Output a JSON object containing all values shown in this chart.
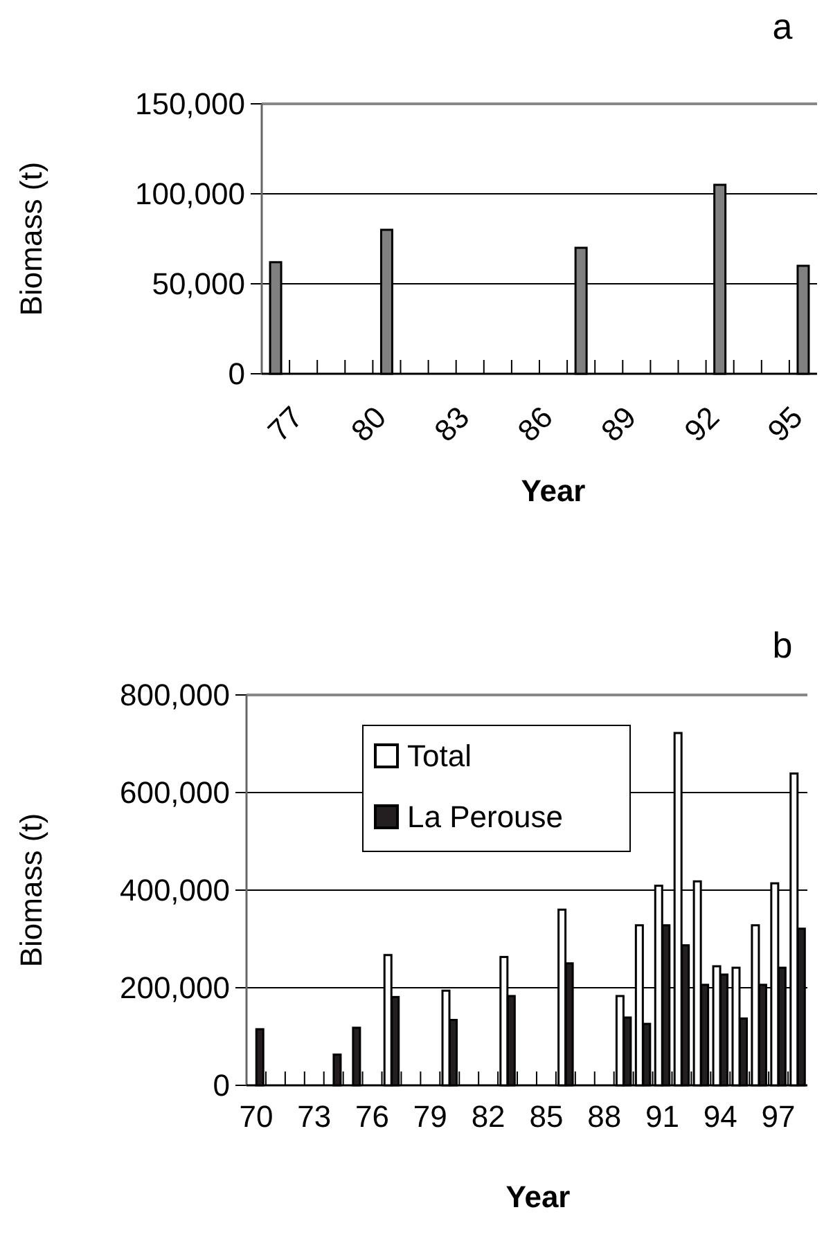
{
  "chart_data": [
    {
      "type": "bar",
      "title": "a",
      "xlabel": "Year",
      "ylabel": "Biomass (t)",
      "categories": [
        "77",
        null,
        null,
        "80",
        null,
        null,
        "83",
        null,
        null,
        "86",
        null,
        null,
        "89",
        null,
        null,
        "92",
        null,
        null,
        "95",
        null
      ],
      "series": [
        {
          "color": "#808080",
          "values": [
            62000,
            null,
            null,
            null,
            80000,
            null,
            null,
            null,
            null,
            null,
            null,
            70000,
            null,
            null,
            null,
            null,
            105000,
            null,
            null,
            60000
          ]
        }
      ],
      "ylim": [
        0,
        150000
      ],
      "yticks": [
        {
          "value": 0,
          "label": "0"
        },
        {
          "value": 50000,
          "label": "50,000"
        },
        {
          "value": 100000,
          "label": "100,000"
        },
        {
          "value": 150000,
          "label": "150,000"
        }
      ],
      "grid": "y",
      "legend": false
    },
    {
      "type": "bar",
      "title": "b",
      "xlabel": "Year",
      "ylabel": "Biomass (t)",
      "categories": [
        "70",
        null,
        null,
        "73",
        null,
        null,
        "76",
        null,
        null,
        "79",
        null,
        null,
        "82",
        null,
        null,
        "85",
        null,
        null,
        "88",
        null,
        null,
        "91",
        null,
        null,
        "94",
        null,
        null,
        "97",
        null
      ],
      "series": [
        {
          "name": "Total",
          "color": "#ffffff",
          "values": [
            null,
            null,
            null,
            null,
            null,
            null,
            null,
            267000,
            null,
            null,
            194000,
            null,
            null,
            263000,
            null,
            null,
            360000,
            null,
            null,
            183000,
            328000,
            409000,
            722000,
            418000,
            244000,
            241000,
            328000,
            414000,
            639000
          ]
        },
        {
          "name": "La Perouse",
          "color": "#231f20",
          "values": [
            115000,
            null,
            null,
            null,
            63000,
            118000,
            null,
            181000,
            null,
            null,
            134000,
            null,
            null,
            183000,
            null,
            null,
            250000,
            null,
            null,
            139000,
            126000,
            328000,
            287000,
            206000,
            227000,
            137000,
            206000,
            241000,
            321000
          ]
        }
      ],
      "ylim": [
        0,
        800000
      ],
      "yticks": [
        {
          "value": 0,
          "label": "0"
        },
        {
          "value": 200000,
          "label": "200,000"
        },
        {
          "value": 400000,
          "label": "400,000"
        },
        {
          "value": 600000,
          "label": "600,000"
        },
        {
          "value": 800000,
          "label": "800,000"
        }
      ],
      "grid": "y",
      "legend": "top"
    }
  ]
}
